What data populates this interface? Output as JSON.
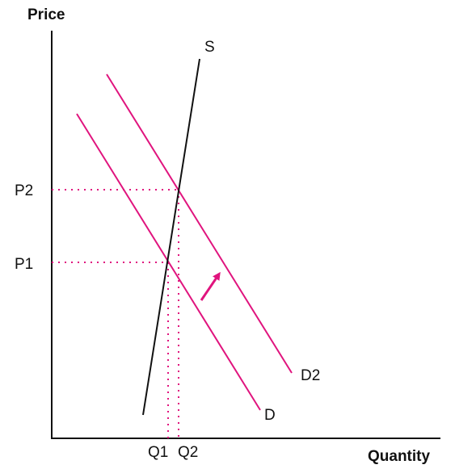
{
  "diagram": {
    "y_axis_title": "Price",
    "x_axis_title": "Quantity",
    "labels": {
      "supply": "S",
      "demand_original": "D",
      "demand_shifted": "D2",
      "price_1": "P1",
      "price_2": "P2",
      "quantity_1": "Q1",
      "quantity_2": "Q2"
    },
    "colors": {
      "axis": "#111111",
      "supply_line": "#111111",
      "demand_lines": "#e0147e",
      "guide_lines": "#e0147e",
      "shift_arrow": "#e0147e"
    }
  }
}
